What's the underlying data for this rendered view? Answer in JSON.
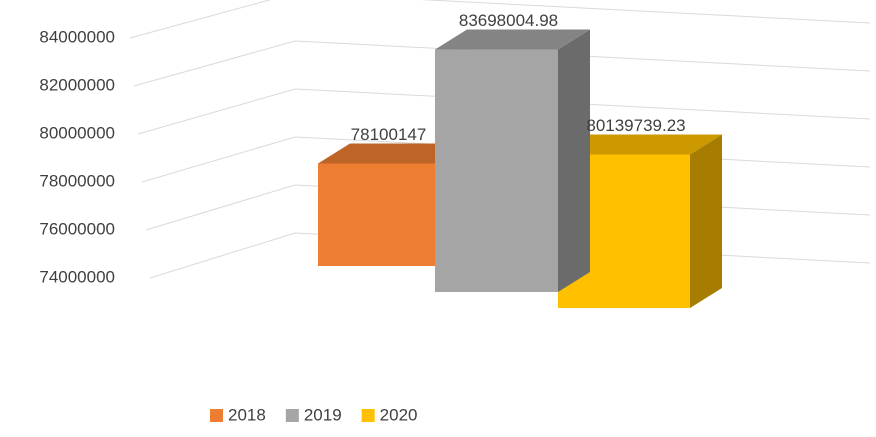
{
  "chart_data": {
    "type": "bar3d",
    "series": [
      {
        "name": "2018",
        "color": "#ed7d31",
        "values": [
          78100147
        ]
      },
      {
        "name": "2019",
        "color": "#a5a5a5",
        "values": [
          83698004.98
        ]
      },
      {
        "name": "2020",
        "color": "#ffc000",
        "values": [
          80139739.23
        ]
      }
    ],
    "ylim": [
      74000000,
      84000000
    ],
    "yticks": [
      74000000,
      76000000,
      78000000,
      80000000,
      82000000,
      84000000
    ],
    "grid": true,
    "legend": "bottom"
  }
}
